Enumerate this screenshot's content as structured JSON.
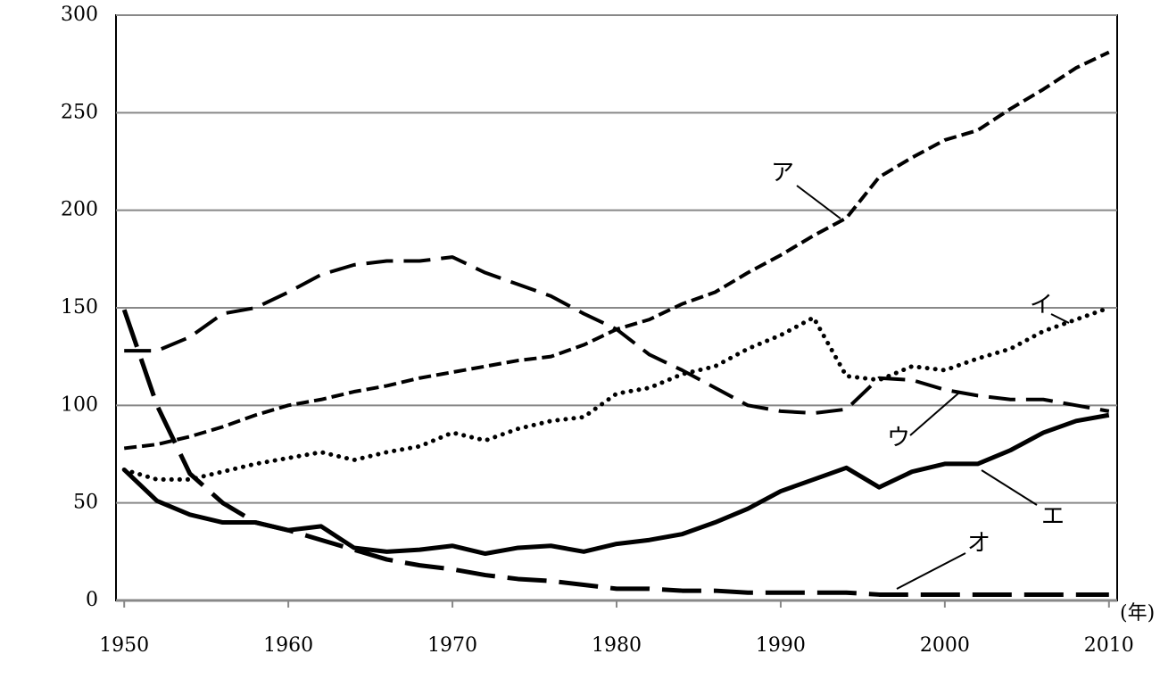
{
  "chart_data": {
    "type": "line",
    "x_unit_label": "(年)",
    "x": [
      1950,
      1952,
      1954,
      1956,
      1958,
      1960,
      1962,
      1964,
      1966,
      1968,
      1970,
      1972,
      1974,
      1976,
      1978,
      1980,
      1982,
      1984,
      1986,
      1988,
      1990,
      1992,
      1994,
      1996,
      1998,
      2000,
      2002,
      2004,
      2006,
      2008,
      2010
    ],
    "xlim": [
      1949.5,
      2010.5
    ],
    "xticks": [
      1950,
      1960,
      1970,
      1980,
      1990,
      2000,
      2010
    ],
    "ylim": [
      0,
      300
    ],
    "yticks": [
      0,
      50,
      100,
      150,
      200,
      250,
      300
    ],
    "grid": true,
    "series": [
      {
        "name": "ア",
        "color": "#000000",
        "values": [
          78,
          80,
          84,
          89,
          95,
          100,
          103,
          107,
          110,
          114,
          117,
          120,
          123,
          125,
          131,
          139,
          144,
          152,
          158,
          168,
          177,
          187,
          196,
          217,
          227,
          236,
          241,
          252,
          262,
          273,
          281
        ]
      },
      {
        "name": "イ",
        "color": "#000000",
        "values": [
          67,
          62,
          62,
          66,
          70,
          73,
          76,
          72,
          76,
          79,
          86,
          82,
          88,
          92,
          94,
          106,
          109,
          116,
          120,
          129,
          136,
          145,
          115,
          113,
          120,
          118,
          124,
          129,
          138,
          144,
          150
        ]
      },
      {
        "name": "ウ",
        "color": "#000000",
        "values": [
          128,
          128,
          135,
          147,
          150,
          158,
          167,
          172,
          174,
          174,
          176,
          168,
          162,
          156,
          147,
          139,
          126,
          118,
          109,
          100,
          97,
          96,
          98,
          114,
          113,
          108,
          105,
          103,
          103,
          100,
          97
        ]
      },
      {
        "name": "エ",
        "color": "#000000",
        "values": [
          67,
          51,
          44,
          40,
          40,
          36,
          38,
          27,
          25,
          26,
          28,
          24,
          27,
          28,
          25,
          29,
          31,
          34,
          40,
          47,
          56,
          62,
          68,
          58,
          66,
          70,
          70,
          77,
          86,
          92,
          95
        ]
      },
      {
        "name": "オ",
        "color": "#000000",
        "values": [
          149,
          100,
          65,
          50,
          40,
          36,
          31,
          26,
          21,
          18,
          16,
          13,
          11,
          10,
          8,
          6,
          6,
          5,
          5,
          4,
          4,
          4,
          4,
          3,
          3,
          3,
          3,
          3,
          3,
          3,
          3
        ]
      }
    ]
  }
}
